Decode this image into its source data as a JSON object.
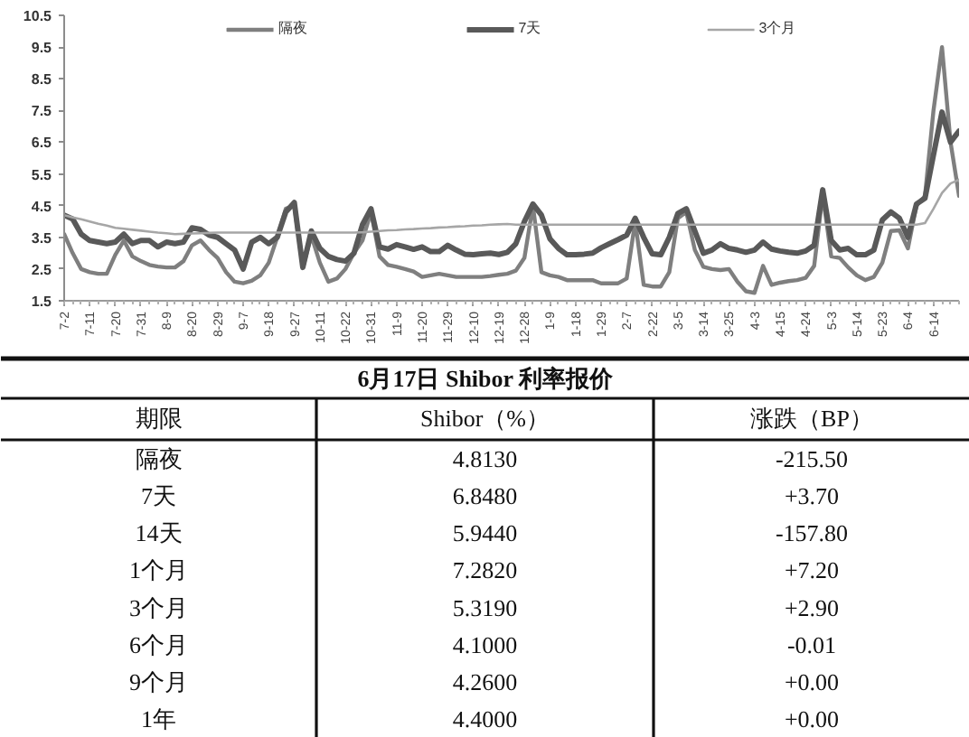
{
  "chart_data": [
    {
      "type": "line",
      "categories": [
        "7-2",
        null,
        null,
        "7-11",
        null,
        null,
        "7-20",
        null,
        null,
        "7-31",
        null,
        null,
        "8-9",
        null,
        null,
        "8-20",
        null,
        null,
        "8-29",
        null,
        null,
        "9-7",
        null,
        null,
        "9-18",
        null,
        null,
        "9-27",
        null,
        null,
        "10-11",
        null,
        null,
        "10-22",
        null,
        null,
        "10-31",
        null,
        null,
        "11-9",
        null,
        null,
        "11-20",
        null,
        null,
        "11-29",
        null,
        null,
        "12-10",
        null,
        null,
        "12-19",
        null,
        null,
        "12-28",
        null,
        null,
        "1-9",
        null,
        null,
        "1-18",
        null,
        null,
        "1-29",
        null,
        null,
        "2-7",
        null,
        null,
        "2-22",
        null,
        null,
        "3-5",
        null,
        null,
        "3-14",
        null,
        null,
        "3-25",
        null,
        null,
        "4-3",
        null,
        null,
        "4-15",
        null,
        null,
        "4-24",
        null,
        null,
        "5-3",
        null,
        null,
        "5-14",
        null,
        null,
        "5-23",
        null,
        null,
        "6-4",
        null,
        null,
        "6-14",
        null,
        null,
        null
      ],
      "series": [
        {
          "name": "隔夜",
          "color": "#7f7f7f",
          "values": [
            3.6,
            3.0,
            2.5,
            2.4,
            2.35,
            2.35,
            2.95,
            3.4,
            2.9,
            2.75,
            2.63,
            2.58,
            2.55,
            2.55,
            2.75,
            3.25,
            3.4,
            3.1,
            2.85,
            2.4,
            2.1,
            2.05,
            2.13,
            2.3,
            2.7,
            3.5,
            4.4,
            4.5,
            2.55,
            3.55,
            2.7,
            2.1,
            2.2,
            2.5,
            3.0,
            3.4,
            4.3,
            2.9,
            2.63,
            2.57,
            2.5,
            2.42,
            2.25,
            2.3,
            2.35,
            2.3,
            2.25,
            2.25,
            2.25,
            2.25,
            2.28,
            2.32,
            2.35,
            2.45,
            2.85,
            4.5,
            2.4,
            2.3,
            2.25,
            2.15,
            2.15,
            2.15,
            2.15,
            2.05,
            2.05,
            2.05,
            2.2,
            4.0,
            2.0,
            1.95,
            1.95,
            2.4,
            4.1,
            4.3,
            3.1,
            2.57,
            2.5,
            2.47,
            2.5,
            2.1,
            1.8,
            1.75,
            2.6,
            2.0,
            2.07,
            2.12,
            2.15,
            2.22,
            2.6,
            4.85,
            2.9,
            2.85,
            2.55,
            2.3,
            2.15,
            2.25,
            2.7,
            3.7,
            3.72,
            3.15,
            4.5,
            4.8,
            7.5,
            9.5,
            6.5,
            4.81
          ]
        },
        {
          "name": "7天",
          "color": "#595959",
          "values": [
            4.2,
            4.08,
            3.6,
            3.4,
            3.35,
            3.3,
            3.35,
            3.6,
            3.3,
            3.4,
            3.4,
            3.2,
            3.35,
            3.3,
            3.35,
            3.8,
            3.75,
            3.57,
            3.5,
            3.3,
            3.1,
            2.5,
            3.35,
            3.5,
            3.3,
            3.5,
            4.3,
            4.6,
            2.55,
            3.7,
            3.15,
            2.9,
            2.8,
            2.75,
            3.0,
            3.9,
            4.4,
            3.2,
            3.13,
            3.27,
            3.2,
            3.12,
            3.2,
            3.05,
            3.05,
            3.25,
            3.1,
            2.97,
            2.95,
            2.98,
            3.0,
            2.96,
            3.03,
            3.3,
            4.0,
            4.55,
            4.2,
            3.45,
            3.15,
            2.95,
            2.95,
            2.97,
            3.0,
            3.17,
            3.3,
            3.43,
            3.57,
            4.1,
            3.5,
            2.98,
            2.95,
            3.5,
            4.25,
            4.4,
            3.7,
            3.0,
            3.1,
            3.3,
            3.15,
            3.1,
            3.03,
            3.1,
            3.35,
            3.13,
            3.07,
            3.03,
            3.0,
            3.07,
            3.25,
            5.0,
            3.4,
            3.1,
            3.15,
            2.95,
            2.95,
            3.1,
            4.05,
            4.3,
            4.1,
            3.5,
            4.55,
            4.73,
            6.1,
            7.45,
            6.5,
            6.85
          ]
        },
        {
          "name": "3个月",
          "color": "#a6a6a6",
          "values": [
            4.2,
            4.13,
            4.07,
            4.0,
            3.93,
            3.87,
            3.8,
            3.77,
            3.74,
            3.71,
            3.68,
            3.65,
            3.63,
            3.6,
            3.61,
            3.62,
            3.63,
            3.64,
            3.65,
            3.65,
            3.65,
            3.65,
            3.65,
            3.65,
            3.65,
            3.65,
            3.65,
            3.65,
            3.65,
            3.65,
            3.65,
            3.65,
            3.65,
            3.65,
            3.65,
            3.66,
            3.68,
            3.7,
            3.72,
            3.73,
            3.75,
            3.76,
            3.78,
            3.79,
            3.81,
            3.82,
            3.84,
            3.85,
            3.87,
            3.88,
            3.9,
            3.91,
            3.92,
            3.9,
            3.9,
            3.9,
            3.9,
            3.9,
            3.9,
            3.9,
            3.9,
            3.9,
            3.9,
            3.9,
            3.9,
            3.9,
            3.9,
            3.9,
            3.9,
            3.9,
            3.9,
            3.9,
            3.9,
            3.9,
            3.9,
            3.9,
            3.9,
            3.9,
            3.9,
            3.9,
            3.9,
            3.9,
            3.9,
            3.9,
            3.9,
            3.9,
            3.9,
            3.9,
            3.9,
            3.9,
            3.9,
            3.9,
            3.9,
            3.9,
            3.9,
            3.9,
            3.9,
            3.9,
            3.9,
            3.9,
            3.9,
            3.95,
            4.4,
            4.9,
            5.2,
            5.32
          ]
        }
      ],
      "ylim": [
        1.5,
        10.5
      ],
      "yticks": [
        1.5,
        2.5,
        3.5,
        4.5,
        5.5,
        6.5,
        7.5,
        8.5,
        9.5,
        10.5
      ],
      "legend": "top"
    },
    {
      "type": "other",
      "title": "6月17日 Shibor 利率报价",
      "xlabel": "期限",
      "categories": [
        "隔夜",
        "7天",
        "14天",
        "1个月",
        "3个月",
        "6个月",
        "9个月",
        "1年"
      ],
      "series": [
        {
          "name": "Shibor（%）",
          "values": [
            4.813,
            6.848,
            5.944,
            7.282,
            5.319,
            4.1,
            4.26,
            4.4
          ],
          "value_labels": [
            "4.8130",
            "6.8480",
            "5.9440",
            "7.2820",
            "5.3190",
            "4.1000",
            "4.2600",
            "4.4000"
          ]
        },
        {
          "name": "涨跌（BP）",
          "values": [
            -215.5,
            3.7,
            -157.8,
            7.2,
            2.9,
            -0.01,
            0.0,
            0.0
          ],
          "value_labels": [
            "-215.50",
            "+3.70",
            "-157.80",
            "+7.20",
            "+2.90",
            "-0.01",
            "+0.00",
            "+0.00"
          ]
        }
      ]
    }
  ]
}
